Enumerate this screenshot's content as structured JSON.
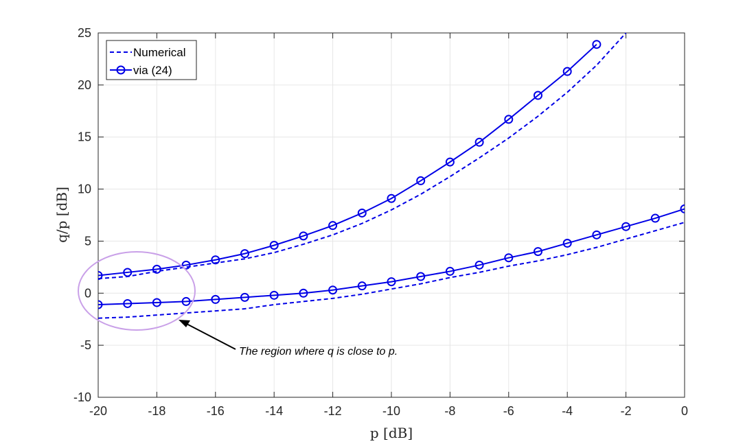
{
  "chart_data": {
    "type": "line",
    "xlabel": "p [dB]",
    "ylabel": "q/p [dB]",
    "xlim": [
      -20,
      0
    ],
    "ylim": [
      -10,
      25
    ],
    "xticks": [
      -20,
      -18,
      -16,
      -14,
      -12,
      -10,
      -8,
      -6,
      -4,
      -2,
      0
    ],
    "yticks": [
      -10,
      -5,
      0,
      5,
      10,
      15,
      20,
      25
    ],
    "grid": true,
    "legend_position": "top-left",
    "line_color": "#0000e6",
    "series": [
      {
        "name": "Numerical",
        "style": "dashed",
        "x": [
          -20,
          -19,
          -18,
          -17,
          -16,
          -15,
          -14,
          -13,
          -12,
          -11,
          -10,
          -9,
          -8,
          -7,
          -6,
          -5,
          -4,
          -3,
          -2
        ],
        "values": [
          1.4,
          1.6,
          2.1,
          2.5,
          2.9,
          3.3,
          3.9,
          4.7,
          5.6,
          6.7,
          8.0,
          9.5,
          11.2,
          13.0,
          14.9,
          17.0,
          19.3,
          21.9,
          25.0
        ]
      },
      {
        "name": "via (24)",
        "style": "solid-circle",
        "x": [
          -20,
          -19,
          -18,
          -17,
          -16,
          -15,
          -14,
          -13,
          -12,
          -11,
          -10,
          -9,
          -8,
          -7,
          -6,
          -5,
          -4,
          -3
        ],
        "values": [
          1.7,
          2.0,
          2.3,
          2.7,
          3.2,
          3.8,
          4.6,
          5.5,
          6.5,
          7.7,
          9.1,
          10.8,
          12.6,
          14.5,
          16.7,
          19.0,
          21.3,
          23.9
        ]
      },
      {
        "name": "Numerical",
        "style": "dashed",
        "x": [
          -20,
          -19,
          -18,
          -17,
          -16,
          -15,
          -14,
          -13,
          -12,
          -11,
          -10,
          -9,
          -8,
          -7,
          -6,
          -5,
          -4,
          -3,
          -2,
          -1,
          0
        ],
        "values": [
          -2.4,
          -2.3,
          -2.1,
          -1.9,
          -1.7,
          -1.5,
          -1.1,
          -0.8,
          -0.5,
          -0.1,
          0.4,
          0.9,
          1.5,
          2.0,
          2.6,
          3.1,
          3.7,
          4.4,
          5.2,
          6.0,
          6.8
        ]
      },
      {
        "name": "via (24)",
        "style": "solid-circle",
        "x": [
          -20,
          -19,
          -18,
          -17,
          -16,
          -15,
          -14,
          -13,
          -12,
          -11,
          -10,
          -9,
          -8,
          -7,
          -6,
          -5,
          -4,
          -3,
          -2,
          -1,
          0
        ],
        "values": [
          -1.1,
          -1.0,
          -0.9,
          -0.8,
          -0.6,
          -0.4,
          -0.2,
          0.0,
          0.3,
          0.7,
          1.1,
          1.6,
          2.1,
          2.7,
          3.4,
          4.0,
          4.8,
          5.6,
          6.4,
          7.2,
          8.1
        ]
      }
    ],
    "legend": [
      {
        "label": "Numerical",
        "style": "dashed"
      },
      {
        "label": "via (24)",
        "style": "solid-circle"
      }
    ],
    "annotation": {
      "text": "The region where q is close to p.",
      "ellipse_color": "#c9a0e8"
    }
  }
}
